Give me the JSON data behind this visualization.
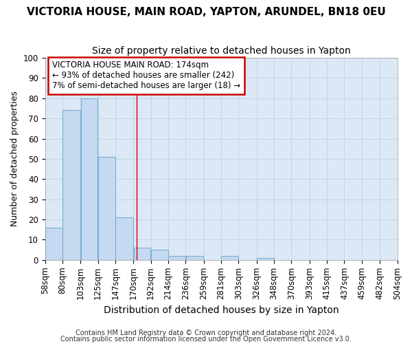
{
  "title": "VICTORIA HOUSE, MAIN ROAD, YAPTON, ARUNDEL, BN18 0EU",
  "subtitle": "Size of property relative to detached houses in Yapton",
  "xlabel": "Distribution of detached houses by size in Yapton",
  "ylabel": "Number of detached properties",
  "bin_edges": [
    58,
    80,
    103,
    125,
    147,
    170,
    192,
    214,
    236,
    259,
    281,
    303,
    326,
    348,
    370,
    393,
    415,
    437,
    459,
    482,
    504
  ],
  "bar_heights": [
    16,
    74,
    80,
    51,
    21,
    6,
    5,
    2,
    2,
    0,
    2,
    0,
    1,
    0,
    0,
    0,
    0,
    0,
    0,
    0
  ],
  "bar_color": "#c5d9f0",
  "bar_edge_color": "#7aafd4",
  "vertical_line_x": 174,
  "vertical_line_color": "#cc0000",
  "annotation_text": "VICTORIA HOUSE MAIN ROAD: 174sqm\n← 93% of detached houses are smaller (242)\n7% of semi-detached houses are larger (18) →",
  "annotation_box_edge_color": "#cc0000",
  "ylim": [
    0,
    100
  ],
  "yticks": [
    0,
    10,
    20,
    30,
    40,
    50,
    60,
    70,
    80,
    90,
    100
  ],
  "title_fontsize": 11,
  "subtitle_fontsize": 10,
  "xlabel_fontsize": 10,
  "ylabel_fontsize": 9,
  "tick_fontsize": 8.5,
  "footer_line1": "Contains HM Land Registry data © Crown copyright and database right 2024.",
  "footer_line2": "Contains public sector information licensed under the Open Government Licence v3.0.",
  "fig_background_color": "#ffffff",
  "plot_background_color": "#dce8f5"
}
